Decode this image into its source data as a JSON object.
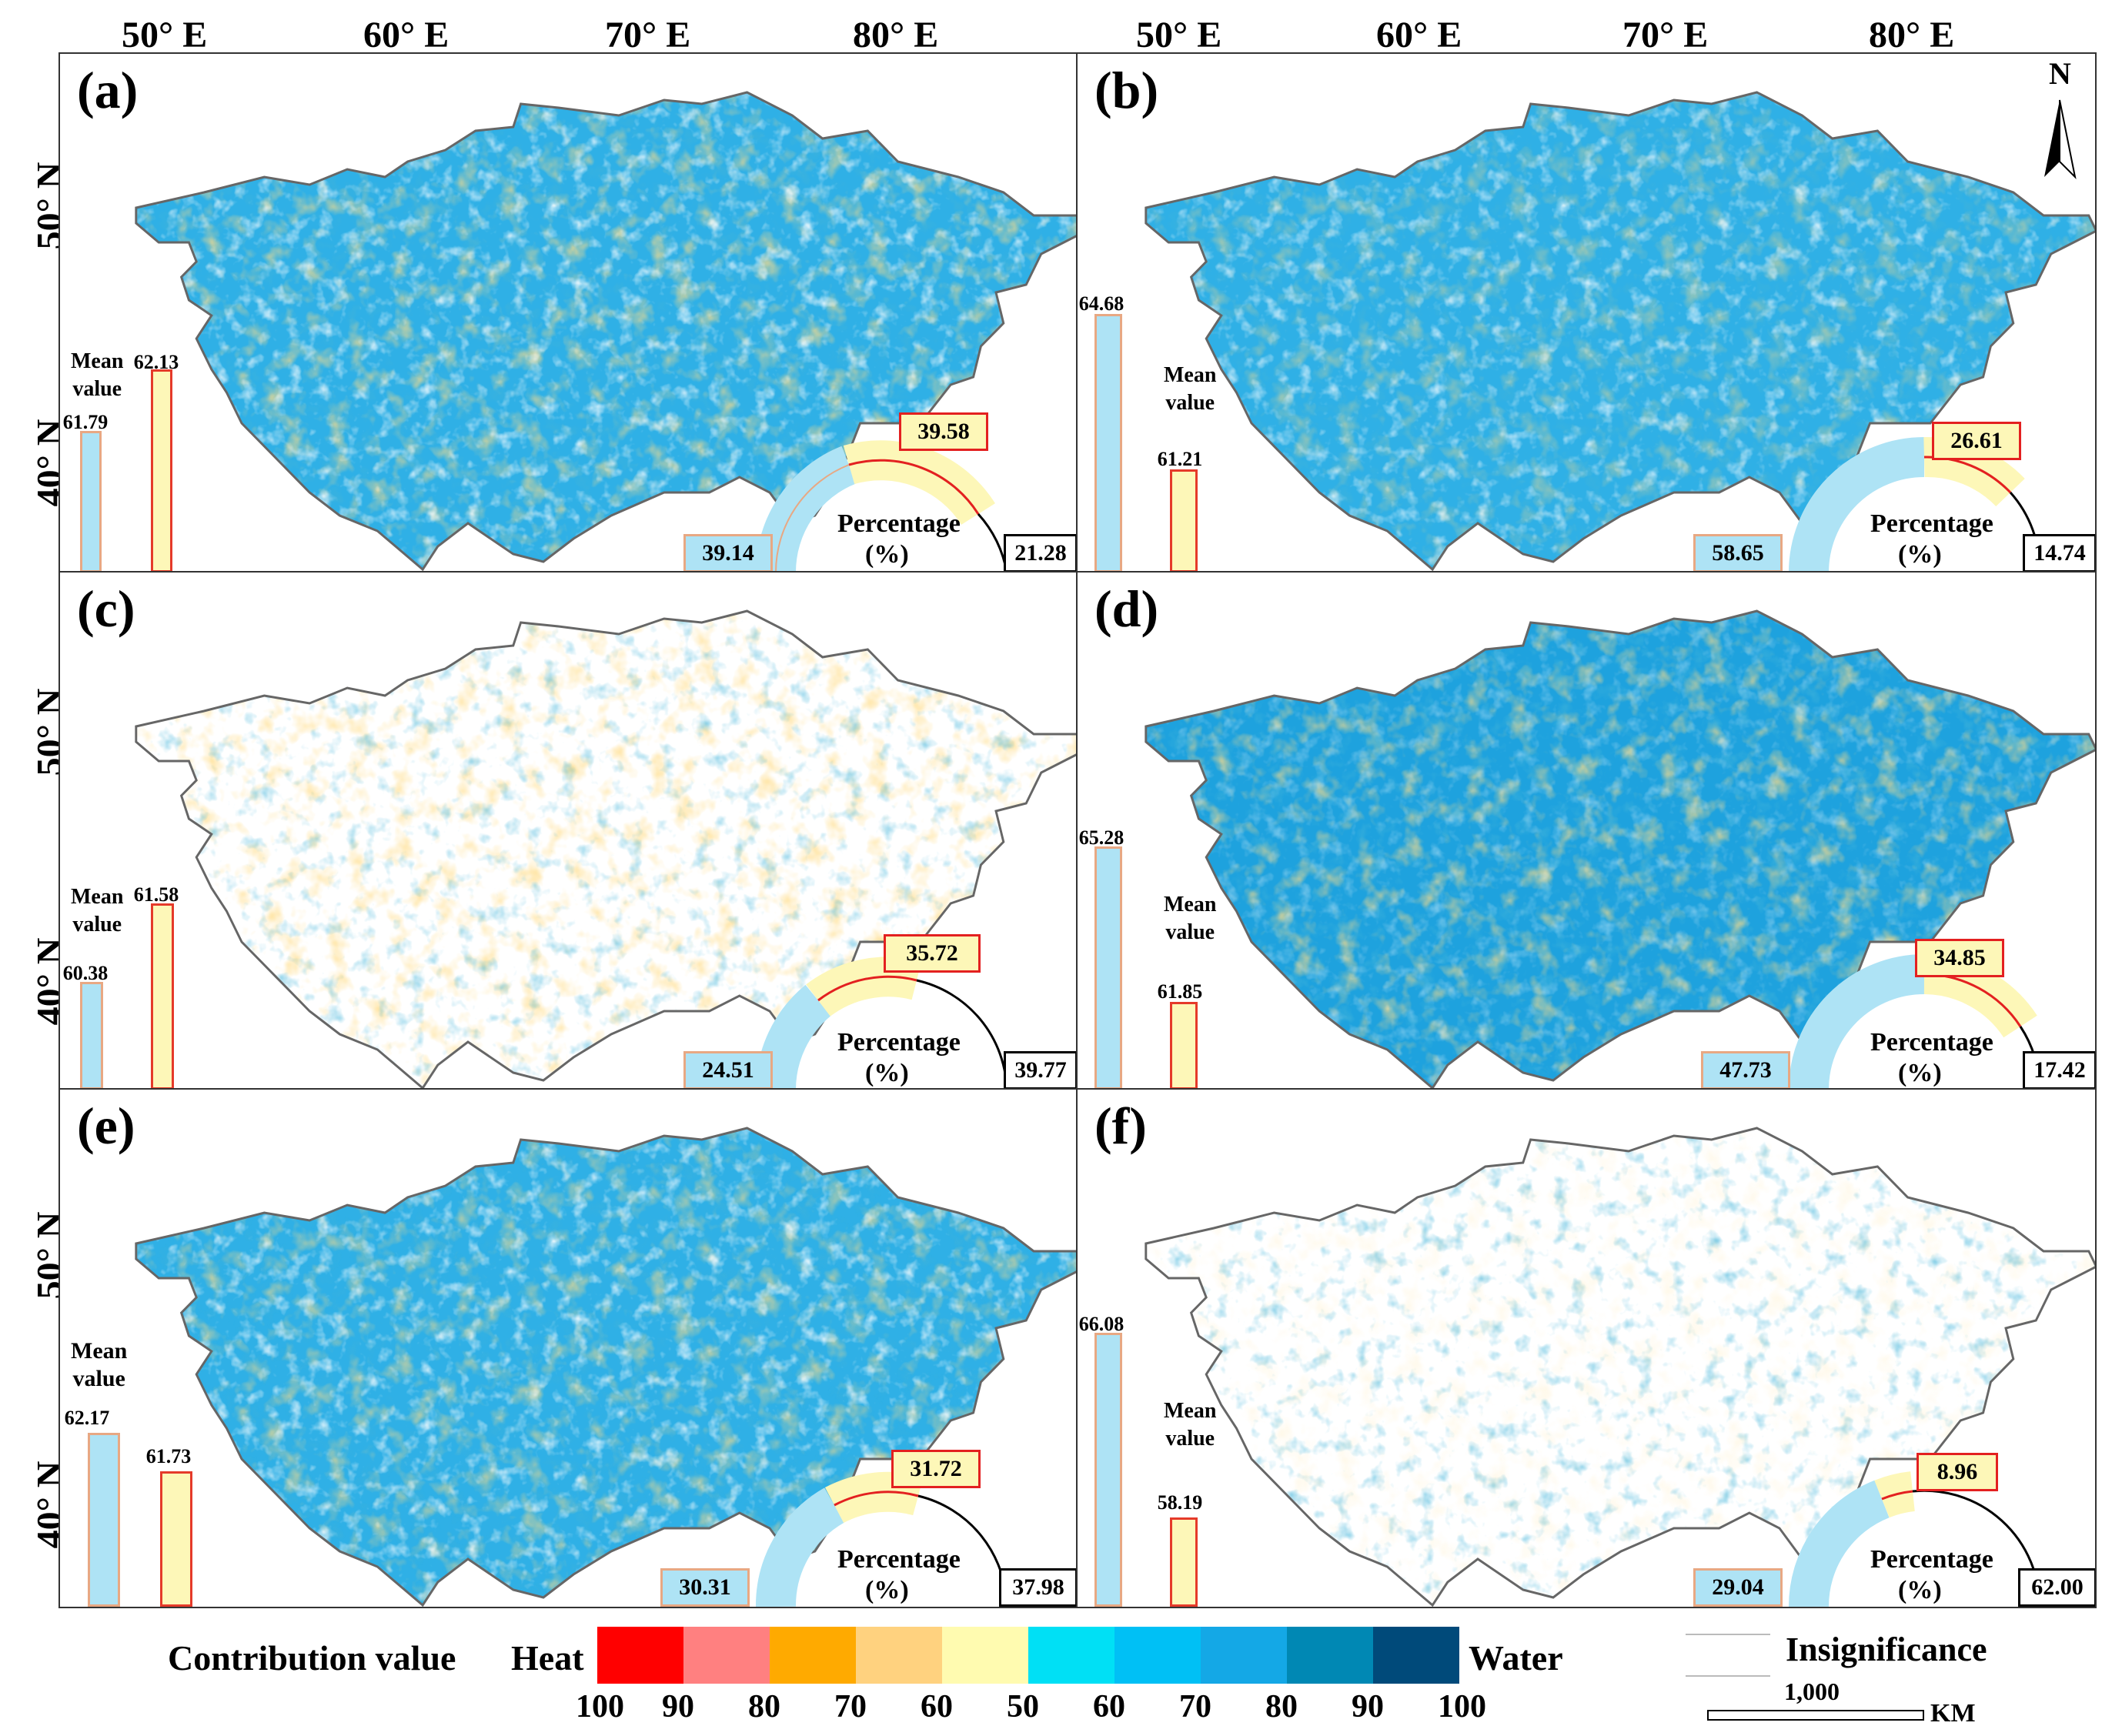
{
  "axes": {
    "longitude_labels": [
      "50° E",
      "60° E",
      "70° E",
      "80° E"
    ],
    "latitude_labels": [
      "50° N",
      "40° N"
    ]
  },
  "mean_value_label": [
    "Mean",
    "value"
  ],
  "percentage_label": "Percentage",
  "percentage_unit": "(%)",
  "panels": [
    {
      "label": "(a)",
      "mean_water": "61.79",
      "mean_heat": "62.13",
      "pct_water": "39.14",
      "pct_heat": "39.58",
      "pct_insig": "21.28"
    },
    {
      "label": "(b)",
      "mean_water": "64.68",
      "mean_heat": "61.21",
      "pct_water": "58.65",
      "pct_heat": "26.61",
      "pct_insig": "14.74"
    },
    {
      "label": "(c)",
      "mean_water": "60.38",
      "mean_heat": "61.58",
      "pct_water": "24.51",
      "pct_heat": "35.72",
      "pct_insig": "39.77"
    },
    {
      "label": "(d)",
      "mean_water": "65.28",
      "mean_heat": "61.85",
      "pct_water": "47.73",
      "pct_heat": "34.85",
      "pct_insig": "17.42"
    },
    {
      "label": "(e)",
      "mean_water": "62.17",
      "mean_heat": "61.73",
      "pct_water": "30.31",
      "pct_heat": "31.72",
      "pct_insig": "37.98"
    },
    {
      "label": "(f)",
      "mean_water": "66.08",
      "mean_heat": "58.19",
      "pct_water": "29.04",
      "pct_heat": "8.96",
      "pct_insig": "62.00"
    }
  ],
  "legend": {
    "title": "Contribution value",
    "heat_label": "Heat",
    "water_label": "Water",
    "ticks": [
      "100",
      "90",
      "80",
      "70",
      "60",
      "50",
      "60",
      "70",
      "80",
      "90",
      "100"
    ],
    "colors": [
      "#ff0000",
      "#ff8080",
      "#ffaa00",
      "#ffd27f",
      "#fffbb0",
      "#00e0f5",
      "#00c0f5",
      "#14a8e6",
      "#0088b4",
      "#004a7a"
    ],
    "insignificance_label": "Insignificance",
    "scale_value": "1,000",
    "scale_unit": "KM"
  },
  "north_label": "N"
}
